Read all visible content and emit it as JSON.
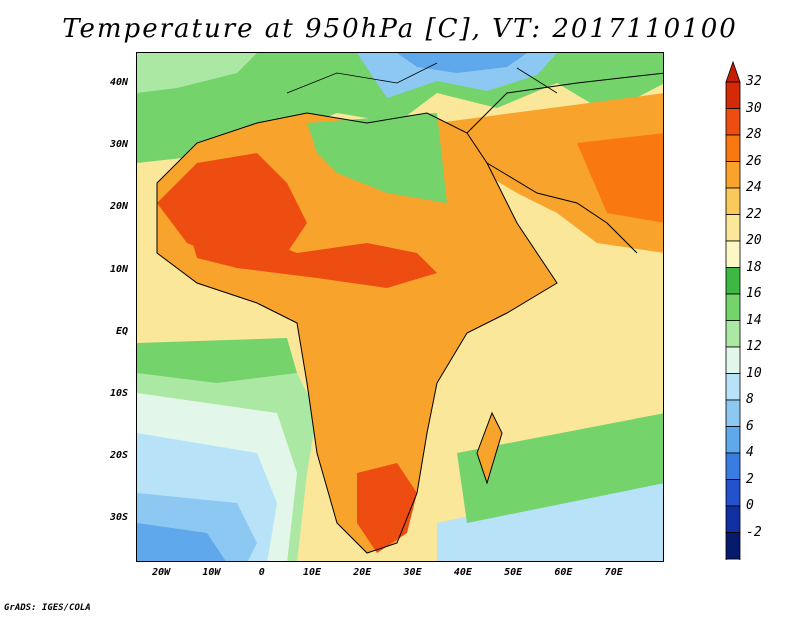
{
  "title": "Temperature at 950hPa [C], VT: 2017110100",
  "credit": "GrADS: IGES/COLA",
  "map": {
    "lon_range": [
      -25,
      80
    ],
    "lat_range": [
      -37,
      45
    ],
    "lat_labels": [
      "40N",
      "30N",
      "20N",
      "10N",
      "EQ",
      "10S",
      "20S",
      "30S"
    ],
    "lat_values": [
      40,
      30,
      20,
      10,
      0,
      -10,
      -20,
      -30
    ],
    "lon_labels": [
      "20W",
      "10W",
      "0",
      "10E",
      "20E",
      "30E",
      "40E",
      "50E",
      "60E",
      "70E"
    ],
    "lon_values": [
      -20,
      -10,
      0,
      10,
      20,
      30,
      40,
      50,
      60,
      70
    ]
  },
  "colorbar": {
    "labels": [
      "32",
      "30",
      "28",
      "26",
      "24",
      "22",
      "20",
      "18",
      "16",
      "14",
      "12",
      "10",
      "8",
      "6",
      "4",
      "2",
      "0",
      "-2"
    ],
    "colors": [
      "#d42a08",
      "#ee4d12",
      "#f9780f",
      "#f8a32b",
      "#f9c95b",
      "#fbe79a",
      "#fcf8c6",
      "#3eb842",
      "#74d36a",
      "#abe8a3",
      "#e2f7e9",
      "#b7e2f7",
      "#8dc8f2",
      "#5fa8ec",
      "#3a7de2",
      "#2352cc",
      "#1030a2",
      "#071b6e"
    ],
    "arrow_top_color": "#c81e05",
    "arrow_bottom_color": "#d9d8f8"
  }
}
